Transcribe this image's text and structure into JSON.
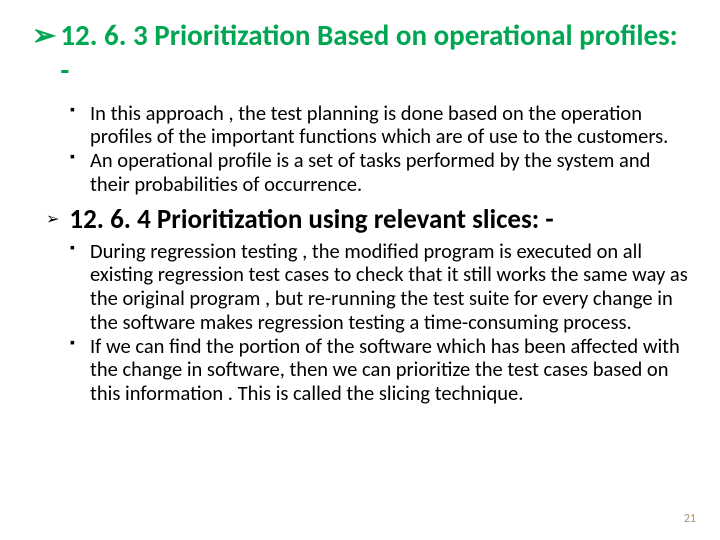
{
  "heading1": "12. 6. 3 Prioritization Based on operational profiles: -",
  "bullets_a": [
    "In this approach , the test planning is done based on the operation profiles of the important functions which are of use to the customers.",
    "An operational profile is a set of tasks performed by the system and their probabilities of occurrence."
  ],
  "heading2": "12. 6. 4 Prioritization using relevant slices: -",
  "bullets_b": [
    "During regression testing , the modified program is executed on all existing regression test cases to check that it still works the same way as the original program , but re-running the test suite for every change in the software makes regression testing a time-consuming process.",
    "If we can find the portion of the software which has been affected with the change in software, then we can prioritize the test cases based on this information . This is called the slicing technique."
  ],
  "page_number": "21",
  "colors": {
    "heading": "#00a651",
    "text": "#000000",
    "pagenum": "#b18f6a",
    "background": "#ffffff"
  }
}
